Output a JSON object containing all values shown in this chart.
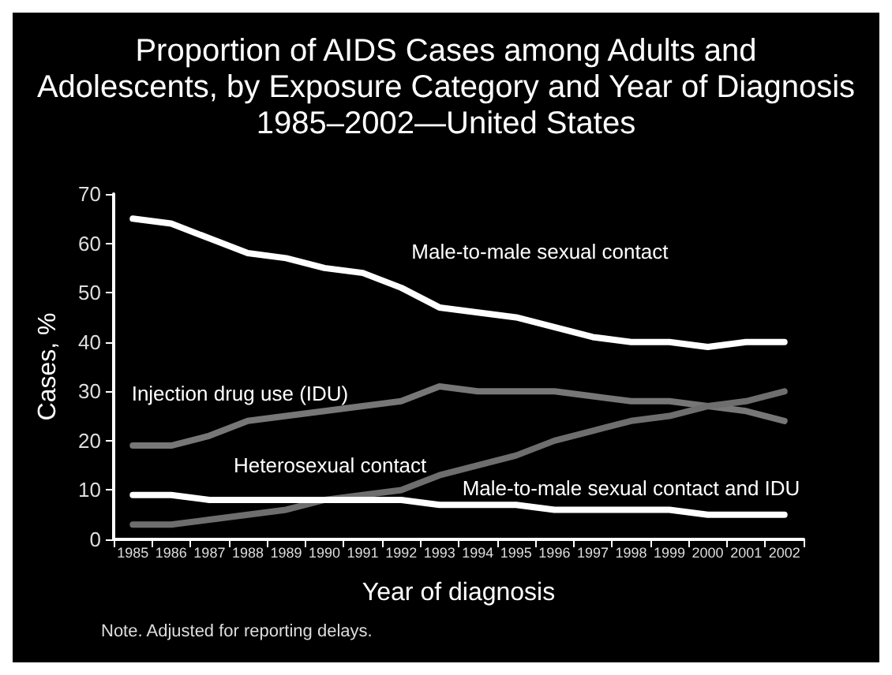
{
  "chart_data": {
    "type": "line",
    "title": "Proportion of AIDS Cases among Adults and\nAdolescents, by Exposure Category and Year of Diagnosis\n1985–2002—United States",
    "xlabel": "Year of diagnosis",
    "ylabel": "Cases, %",
    "categories": [
      "1985",
      "1986",
      "1987",
      "1988",
      "1989",
      "1990",
      "1991",
      "1992",
      "1993",
      "1994",
      "1995",
      "1996",
      "1997",
      "1998",
      "1999",
      "2000",
      "2001",
      "2002"
    ],
    "series": [
      {
        "name": "Male-to-male sexual contact",
        "color": "#ffffff",
        "values": [
          65,
          64,
          61,
          58,
          57,
          55,
          54,
          51,
          47,
          46,
          45,
          43,
          41,
          40,
          40,
          39,
          40,
          40
        ]
      },
      {
        "name": "Injection drug use (IDU)",
        "color": "#777777",
        "values": [
          19,
          19,
          21,
          24,
          25,
          26,
          27,
          28,
          31,
          30,
          30,
          30,
          29,
          28,
          28,
          27,
          26,
          24
        ]
      },
      {
        "name": "Heterosexual contact",
        "color": "#6e6e6e",
        "values": [
          3,
          3,
          4,
          5,
          6,
          8,
          9,
          10,
          13,
          15,
          17,
          20,
          22,
          24,
          25,
          27,
          28,
          30
        ]
      },
      {
        "name": "Male-to-male sexual contact and IDU",
        "color": "#ffffff",
        "values": [
          9,
          9,
          8,
          8,
          8,
          8,
          8,
          8,
          7,
          7,
          7,
          6,
          6,
          6,
          6,
          5,
          5,
          5
        ]
      }
    ],
    "ylim": [
      0,
      70
    ],
    "yticks": [
      0,
      10,
      20,
      30,
      40,
      50,
      60,
      70
    ],
    "grid": false,
    "legend": false,
    "marker": "none",
    "line_style": "solid",
    "annotations": [
      "Note. Adjusted for reporting delays."
    ]
  }
}
